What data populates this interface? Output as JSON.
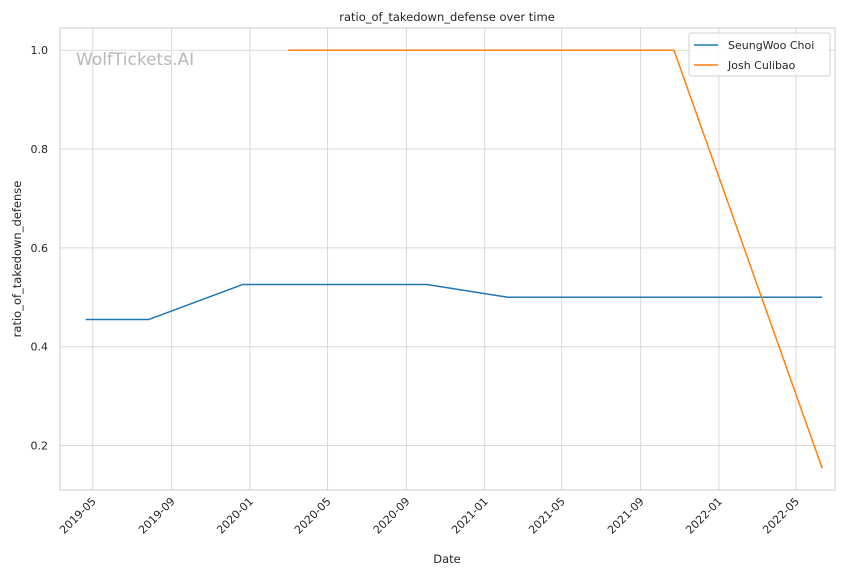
{
  "chart_data": {
    "type": "line",
    "title": "ratio_of_takedown_defense over time",
    "xlabel": "Date",
    "ylabel": "ratio_of_takedown_defense",
    "watermark": "WolfTickets.AI",
    "x_ticks": [
      "2019-05",
      "2019-09",
      "2020-01",
      "2020-05",
      "2020-09",
      "2021-01",
      "2021-05",
      "2021-09",
      "2022-01",
      "2022-05"
    ],
    "y_ticks": [
      "0.2",
      "0.4",
      "0.6",
      "0.8",
      "1.0"
    ],
    "xlim": [
      "2019-03-11",
      "2022-07-01"
    ],
    "ylim": [
      0.11,
      1.045
    ],
    "grid": true,
    "legend_position": "top-right",
    "series": [
      {
        "name": "SeungWoo Choi",
        "color": "#1f77b4",
        "points": [
          {
            "x": "2019-04-20",
            "y": 0.455
          },
          {
            "x": "2019-07-27",
            "y": 0.455
          },
          {
            "x": "2019-12-21",
            "y": 0.526
          },
          {
            "x": "2020-10-03",
            "y": 0.526
          },
          {
            "x": "2021-02-06",
            "y": 0.5
          },
          {
            "x": "2022-06-11",
            "y": 0.5
          }
        ]
      },
      {
        "name": "Josh Culibao",
        "color": "#ff7f0e",
        "points": [
          {
            "x": "2020-02-29",
            "y": 1.0
          },
          {
            "x": "2021-10-23",
            "y": 1.0
          },
          {
            "x": "2022-06-11",
            "y": 0.154
          }
        ]
      }
    ]
  }
}
